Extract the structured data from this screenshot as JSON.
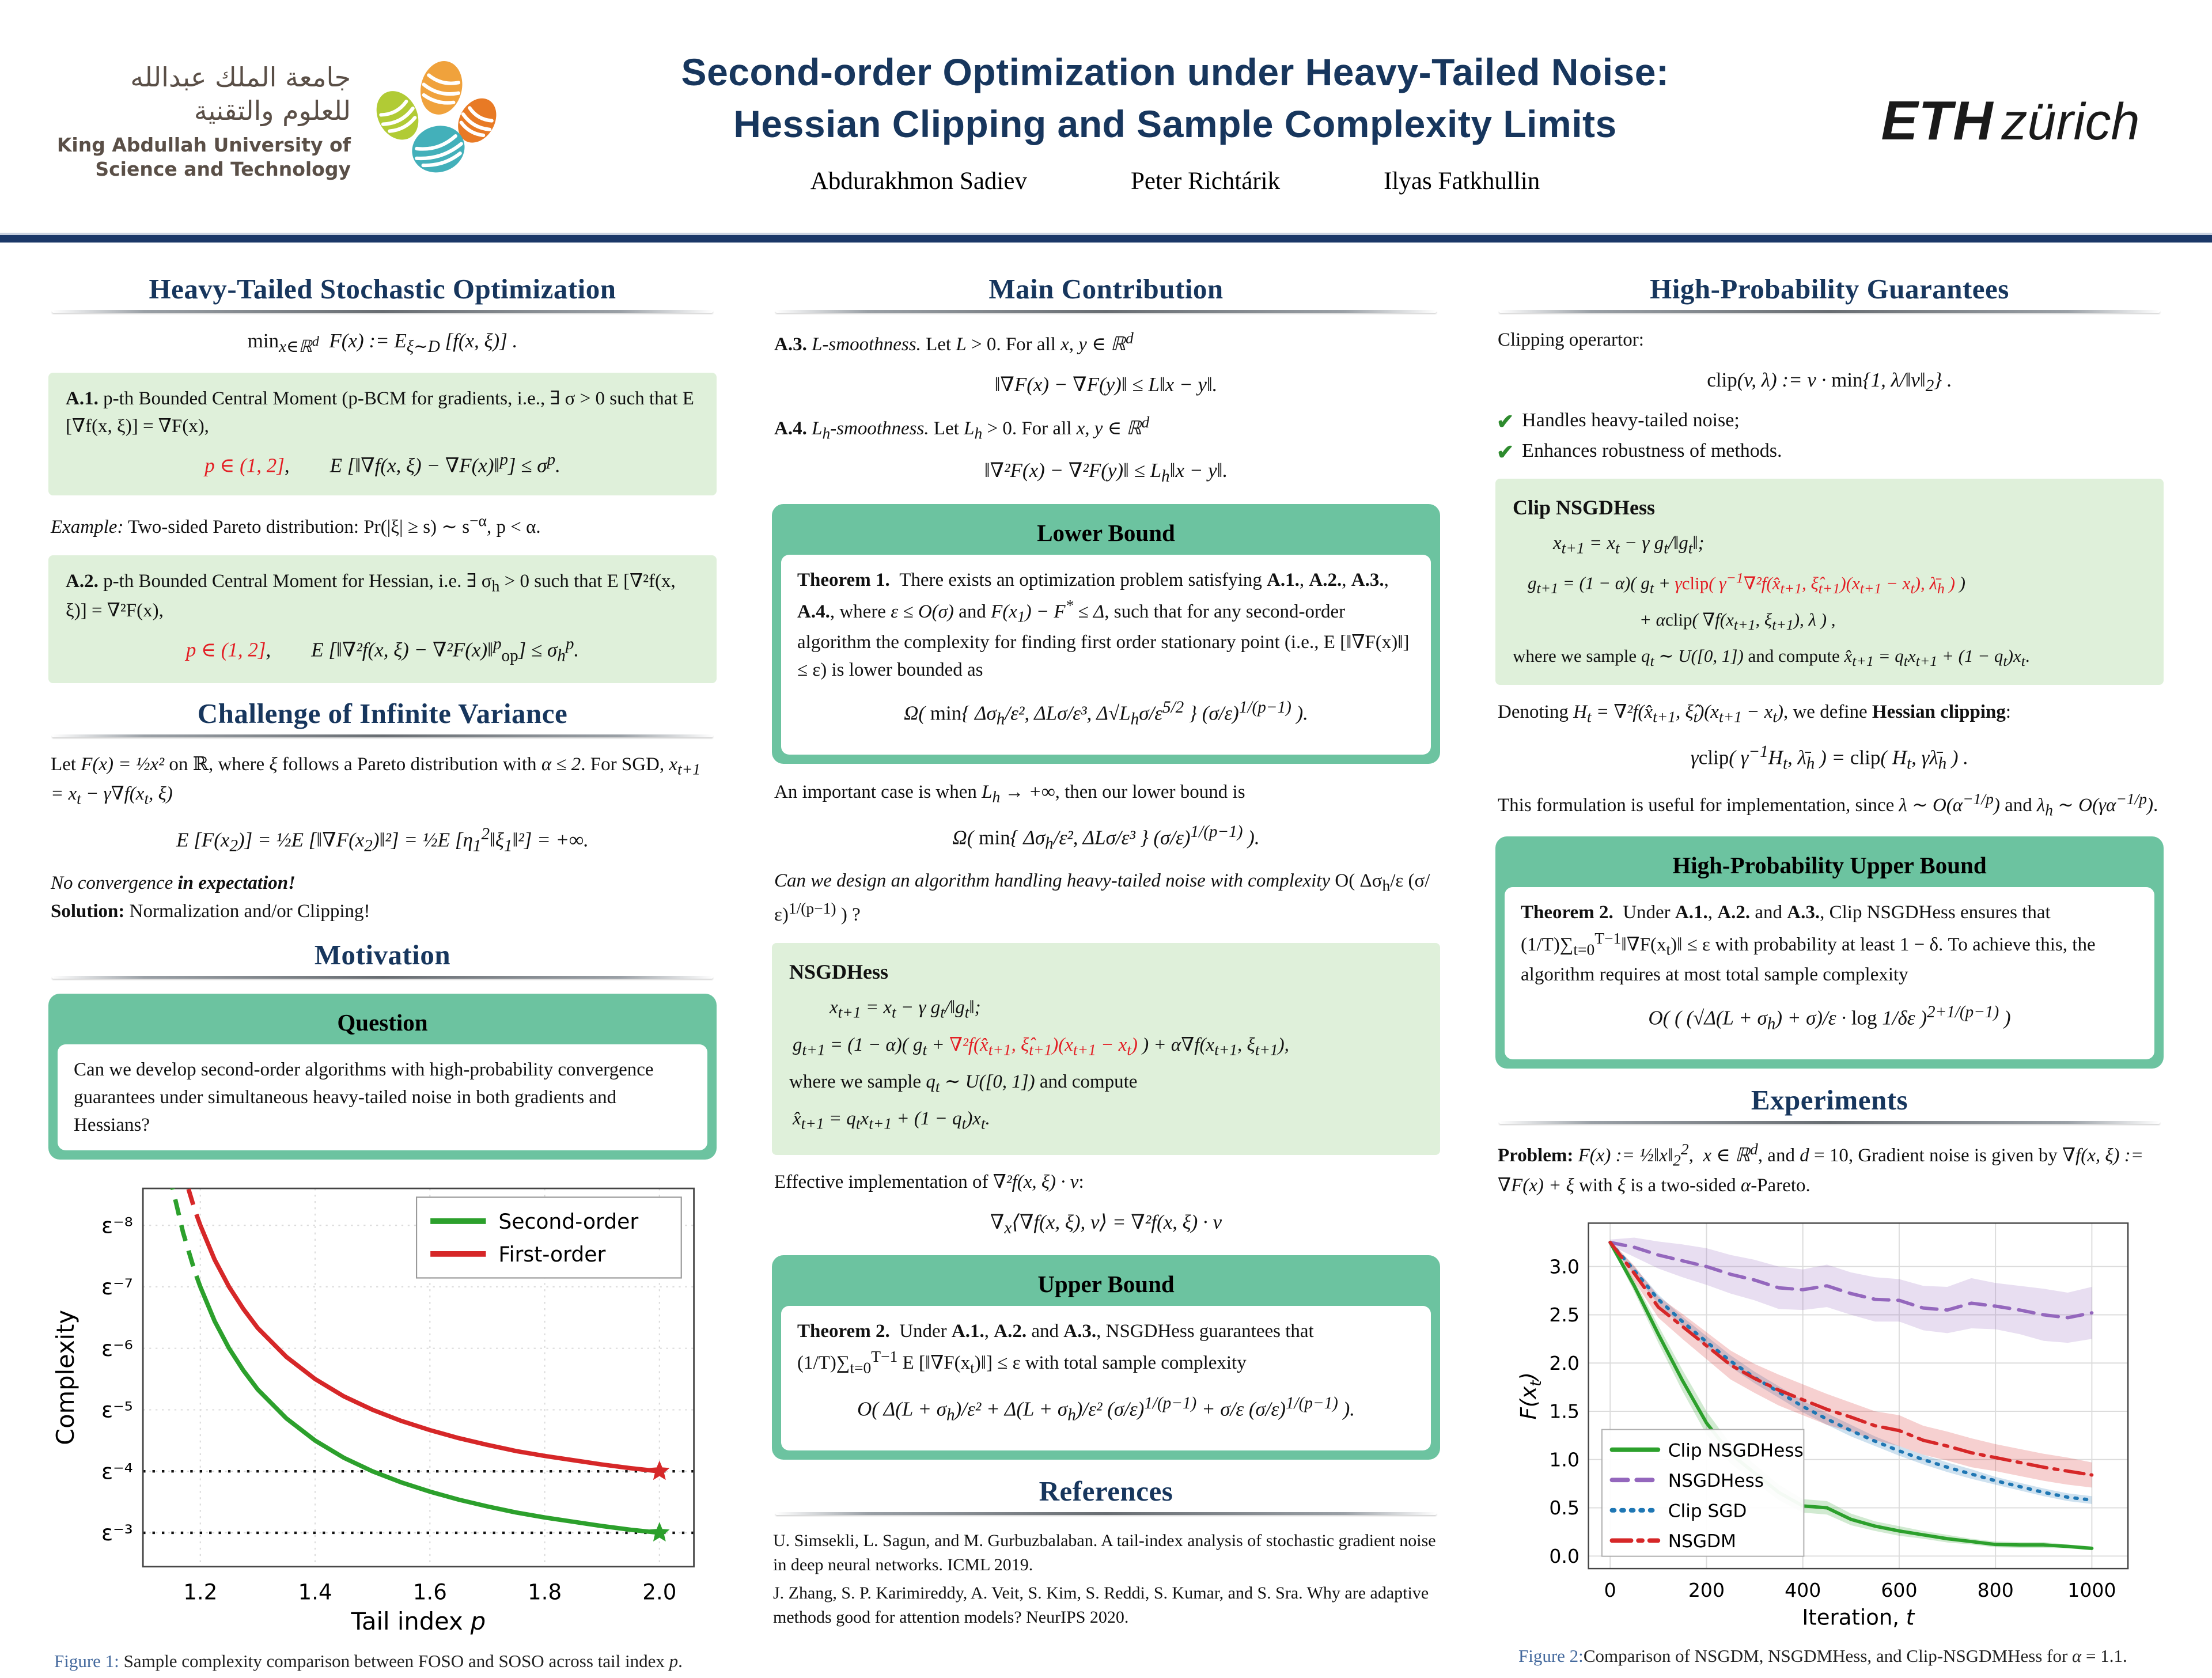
{
  "header": {
    "title1": "Second-order Optimization under Heavy-Tailed Noise:",
    "title2": "Hessian Clipping and Sample Complexity Limits",
    "authors": [
      "Abdurakhmon Sadiev",
      "Peter Richtárik",
      "Ilyas Fatkhullin"
    ]
  },
  "logos": {
    "kaust": {
      "arabic1": "جامعة الملك عبدالله",
      "arabic2": "للعلوم والتقنية",
      "english1": "King Abdullah University of",
      "english2": "Science and Technology"
    },
    "eth": {
      "bold": "ETH",
      "light": "zürich"
    }
  },
  "left": {
    "sec1_title": "Heavy-Tailed Stochastic Optimization",
    "eq_min": "<span class='rm'>min</span><sub>x∈ℝ<sup>d</sup></sub>&ensp;F(x) := E<sub>ξ∼D</sub> [f(x, ξ)] .",
    "a1_text": "<b class='rm'>A.1.</b> p-th Bounded Central Moment (p-BCM for gradients, i.e., ∃ σ &gt; 0 such that E [∇f(x, ξ)] = ∇F(x),",
    "a1_eq": "<span class='red'>p ∈ (1, 2]</span>,&emsp;&emsp;E [‖∇f(x, ξ) − ∇F(x)‖<sup>p</sup>] ≤ σ<sup>p</sup>.",
    "example": "<i>Example:</i> Two-sided Pareto distribution: <span class='rm'>Pr</span>(|ξ| ≥ s) ∼ s<sup>−α</sup>, p &lt; α.",
    "a2_text": "<b class='rm'>A.2.</b> p-th Bounded Central Moment for Hessian, i.e. ∃ σ<sub>h</sub> &gt; 0 such that E [∇²f(x, ξ)] = ∇²F(x),",
    "a2_eq": "<span class='red'>p ∈ (1, 2]</span>,&emsp;&emsp;E [‖∇²f(x, ξ) − ∇²F(x)‖<sup>p</sup><sub class='rm'>op</sub>] ≤ σ<sub>h</sub><sup>p</sup>.",
    "sec2_title": "Challenge of Infinite Variance",
    "chal_p1": "Let <i>F(x) = ½x²</i> on ℝ, where <i>ξ</i> follows a Pareto distribution with <i>α ≤ 2</i>. For SGD, <i>x<sub>t+1</sub> = x<sub>t</sub> − γ∇f(x<sub>t</sub>, ξ)</i>",
    "chal_eq": "E [F(x<sub>2</sub>)] = ½E [‖∇F(x<sub>2</sub>)‖²] = ½E [η<sub>1</sub><sup>2</sup>‖ξ<sub>1</sub>‖²] = +∞.",
    "chal_line1": "<i>No convergence</i> <b><i>in expectation!</i></b>",
    "chal_line2": "<b>Solution:</b> Normalization and/or Clipping!",
    "sec3_title": "Motivation",
    "q_title": "Question",
    "q_text": "Can we develop second-order algorithms with high-probability convergence guarantees under simultaneous heavy-tailed noise in both gradients and Hessians?",
    "fig1_label": "Figure 1:",
    "fig1_caption": "Sample complexity comparison between FOSO and SOSO across tail index <i>p</i>."
  },
  "middle": {
    "title": "Main Contribution",
    "a3_text": "<b class='rm'>A.3.</b> <i>L-smoothness.</i> Let <i>L</i> &gt; 0. For all <i>x, y ∈ ℝ<sup>d</sup></i>",
    "a3_eq": "‖∇F(x) − ∇F(y)‖ ≤ L‖x − y‖.",
    "a4_text": "<b class='rm'>A.4.</b> <i>L<sub>h</sub>-smoothness.</i> Let <i>L<sub>h</sub></i> &gt; 0. For all <i>x, y ∈ ℝ<sup>d</sup></i>",
    "a4_eq": "‖∇²F(x) − ∇²F(y)‖ ≤ L<sub>h</sub>‖x − y‖.",
    "lb_title": "Lower Bound",
    "thm1": "<b>Theorem 1.</b>&ensp;There exists an optimization problem satisfying <b>A.1.</b>, <b>A.2.</b>, <b>A.3.</b>, <b>A.4.</b>, where <i>ε ≤ O(σ)</i> and <i>F(x<sub>1</sub>) − F<sup>*</sup> ≤ Δ</i>, such that for any second-order algorithm the complexity for finding first order stationary point (i.e., E [‖∇F(x)‖] ≤ ε) is lower bounded as",
    "thm1_eq": "Ω( <span class='rm'>min</span>{ Δσ<sub>h</sub>/ε², ΔLσ/ε³, Δ√L<sub>h</sub>σ/ε<sup>5/2</sup> } (σ/ε)<sup>1/(p−1)</sup> ).",
    "imp": "An important case is when <i>L<sub>h</sub> → +∞</i>, then our lower bound is",
    "imp_eq": "Ω( <span class='rm'>min</span>{ Δσ<sub>h</sub>/ε², ΔLσ/ε³ } (σ/ε)<sup>1/(p−1)</sup> ).",
    "design_q": "<i>Can we design an algorithm handling heavy-tailed noise with complexity</i> O( Δσ<sub>h</sub>/ε (σ/ε)<sup>1/(p−1)</sup> ) ?",
    "alg_title": "NSGDHess",
    "alg_eq1": "x<sub>t+1</sub> = x<sub>t</sub> − γ g<sub>t</sub>/‖g<sub>t</sub>‖;",
    "alg_eq2": "g<sub>t+1</sub> = (1 − α)( g<sub>t</sub> + <span class='red'>∇²f(x̂<sub>t+1</sub>, ξ̂<sub>t+1</sub>)(x<sub>t+1</sub> − x<sub>t</sub>)</span> ) + α∇f(x<sub>t+1</sub>, ξ<sub>t+1</sub>),",
    "alg_p": "where we sample <i>q<sub>t</sub> ∼ U([0, 1])</i> and compute",
    "alg_eq3": "x̂<sub>t+1</sub> = q<sub>t</sub>x<sub>t+1</sub> + (1 − q<sub>t</sub>)x<sub>t</sub>.",
    "eff_p": "Effective implementation of <i>∇²f(x, ξ) · v</i>:",
    "eff_eq": "∇<sub>x</sub>⟨∇f(x, ξ), v⟩ = ∇²f(x, ξ) · v",
    "ub_title": "Upper Bound",
    "thm2": "<b>Theorem 2.</b>&ensp;Under <b>A.1.</b>, <b>A.2.</b> and <b>A.3.</b>, NSGDHess guarantees that (1/T)∑<sub>t=0</sub><sup>T−1</sup> E [‖∇F(x<sub>t</sub>)‖] ≤ ε with total sample complexity",
    "thm2_eq": "O( Δ(L + σ<sub>h</sub>)/ε² + Δ(L + σ<sub>h</sub>)/ε² (σ/ε)<sup>1/(p−1)</sup> + σ/ε (σ/ε)<sup>1/(p−1)</sup> ).",
    "refs_title": "References",
    "ref1": "U. Simsekli, L. Sagun, and M. Gurbuzbalaban. A tail-index analysis of stochastic gradient noise in deep neural networks. ICML 2019.",
    "ref2": "J. Zhang, S. P. Karimireddy, A. Veit, S. Kim, S. Reddi, S. Kumar, and S. Sra. Why are adaptive methods good for attention models? NeurIPS 2020."
  },
  "right": {
    "title": "High-Probability Guarantees",
    "clip_p": "Clipping operartor:",
    "clip_eq": "<span class='rm'>clip</span>(v, λ) := v · <span class='rm'>min</span>{1, λ/‖v‖<sub>2</sub>} .",
    "check1": "Handles heavy-tailed noise;",
    "check2": "Enhances robustness of methods.",
    "box_title": "Clip NSGDHess",
    "eq1": "x<sub>t+1</sub> = x<sub>t</sub> − γ g<sub>t</sub>/‖g<sub>t</sub>‖;",
    "eq2": "g<sub>t+1</sub> = (1 − α)( g<sub>t</sub> + <span class='red'>γ<span class='rm'>clip</span>( γ<sup>−1</sup>∇²f(x̂<sub>t+1</sub>, ξ̂<sub>t+1</sub>)(x<sub>t+1</sub> − x<sub>t</sub>), λ̄<sub>h</sub> )</span> )",
    "eq3": "+ α<span class='rm'>clip</span>( ∇f(x<sub>t+1</sub>, ξ<sub>t+1</sub>), λ ) ,",
    "where_p": "where we sample <i>q<sub>t</sub> ∼ U([0, 1])</i> and compute <i>x̂<sub>t+1</sub> = q<sub>t</sub>x<sub>t+1</sub> + (1 − q<sub>t</sub>)x<sub>t</sub></i>.",
    "denote_p": "Denoting <i>H<sub>t</sub> = ∇²f(x̂<sub>t+1</sub>, ξ̂<sub>t</sub>)(x<sub>t+1</sub> − x<sub>t</sub>)</i>, we define <b>Hessian clipping</b>:",
    "denote_eq": "γ<span class='rm'>clip</span>( γ<sup>−1</sup>H<sub>t</sub>, λ̄<sub>h</sub> ) = <span class='rm'>clip</span>( H<sub>t</sub>, γλ̄<sub>h</sub> ) .",
    "useful_p": "This formulation is useful for implementation, since <i>λ ∼ O(α<sup>−1/p</sup>)</i> and <i>λ<sub>h</sub> ∼ O(γα<sup>−1/p</sup>)</i>.",
    "hp_title": "High-Probability Upper Bound",
    "hp_thm": "<b>Theorem 2.</b>&ensp;Under <b>A.1.</b>, <b>A.2.</b> and <b>A.3.</b>, Clip NSGDHess ensures that (1/T)∑<sub>t=0</sub><sup>T−1</sup>‖∇F(x<sub>t</sub>)‖ ≤ ε with probability at least 1 − δ. To achieve this, the algorithm requires at most total sample complexity",
    "hp_eq": "O( ( (√Δ(L + σ<sub>h</sub>) + σ)/ε · <span class='rm'>log</span> 1/δε )<sup>2+1/(p−1)</sup> )",
    "exp_title": "Experiments",
    "problem": "<b>Problem:</b> <i>F(x) := ½‖x‖<sub>2</sub><sup>2</sup>,&ensp;x ∈ ℝ<sup>d</sup></i>, and <i>d</i> = 10, Gradient noise is given by <i>∇f(x, ξ) := ∇F(x) + ξ</i> with <i>ξ</i> is a two-sided <i>α</i>-Pareto.",
    "fig2_label": "Figure 2:",
    "fig2_caption": "Comparison of NSGDM, NSGDMHess, and Clip-NSGDMHess for <i>α</i> = 1.1."
  },
  "chart_data": [
    {
      "id": "fig1",
      "type": "line",
      "title": "",
      "xlabel": "Tail index p",
      "ylabel": "Complexity",
      "xlim": [
        1.1,
        2.06
      ],
      "ylim_exponent": [
        2.45,
        8.6
      ],
      "x_ticks": [
        1.2,
        1.4,
        1.6,
        1.8,
        2.0
      ],
      "y_ticks": [
        "ε⁻⁸",
        "ε⁻⁷",
        "ε⁻⁶",
        "ε⁻⁵",
        "ε⁻⁴",
        "ε⁻³"
      ],
      "y_tick_exponents": [
        8,
        7,
        6,
        5,
        4,
        3
      ],
      "dotted_lines_exponent": [
        4,
        3
      ],
      "dash_until_p": 1.2,
      "legend_position": "top-right",
      "grid": true,
      "p": [
        1.13,
        1.15,
        1.17,
        1.19,
        1.2,
        1.225,
        1.25,
        1.275,
        1.3,
        1.35,
        1.4,
        1.45,
        1.5,
        1.55,
        1.6,
        1.65,
        1.7,
        1.75,
        1.8,
        1.85,
        1.9,
        1.95,
        2.0
      ],
      "series": [
        {
          "name": "Second-order",
          "color": "#2ca02c",
          "formula": "exponent=(2p−1)/(p−1)",
          "end_marker": [
            2.0,
            3
          ],
          "exp": [
            9.69,
            8.67,
            7.88,
            7.26,
            7.0,
            6.44,
            6.0,
            5.64,
            5.33,
            4.86,
            4.5,
            4.22,
            4.0,
            3.82,
            3.67,
            3.54,
            3.43,
            3.33,
            3.25,
            3.18,
            3.11,
            3.05,
            3.0
          ]
        },
        {
          "name": "First-order",
          "color": "#d62728",
          "formula": "exponent=(3p−2)/(p−1)",
          "end_marker": [
            2.0,
            4
          ],
          "exp": [
            10.69,
            9.67,
            8.88,
            8.26,
            8.0,
            7.44,
            7.0,
            6.64,
            6.33,
            5.86,
            5.5,
            5.22,
            5.0,
            4.82,
            4.67,
            4.54,
            4.43,
            4.33,
            4.25,
            4.18,
            4.11,
            4.05,
            4.0
          ]
        }
      ]
    },
    {
      "id": "fig2",
      "type": "line",
      "title": "",
      "xlabel": "Iteration, t",
      "ylabel": "F(x_t)",
      "xlim": [
        -45,
        1075
      ],
      "ylim": [
        -0.13,
        3.45
      ],
      "x_ticks": [
        0,
        200,
        400,
        600,
        800,
        1000
      ],
      "y_ticks": [
        0.0,
        0.5,
        1.0,
        1.5,
        2.0,
        2.5,
        3.0
      ],
      "legend_position": "bottom-left",
      "grid": true,
      "x": [
        0,
        50,
        100,
        150,
        200,
        250,
        300,
        350,
        400,
        450,
        500,
        550,
        600,
        650,
        700,
        750,
        800,
        850,
        900,
        950,
        1000
      ],
      "series": [
        {
          "name": "Clip NSGDHess",
          "color": "#2ca02c",
          "style": "solid",
          "values": [
            3.25,
            2.8,
            2.3,
            1.82,
            1.38,
            1.06,
            0.86,
            0.66,
            0.52,
            0.5,
            0.38,
            0.31,
            0.26,
            0.22,
            0.18,
            0.15,
            0.12,
            0.115,
            0.115,
            0.1,
            0.08
          ],
          "band": [
            0.02,
            0.06,
            0.09,
            0.11,
            0.12,
            0.1,
            0.09,
            0.08,
            0.07,
            0.07,
            0.06,
            0.05,
            0.05,
            0.04,
            0.04,
            0.03,
            0.03,
            0.03,
            0.03,
            0.02,
            0.02
          ]
        },
        {
          "name": "NSGDHess",
          "color": "#9467bd",
          "style": "dashed",
          "values": [
            3.25,
            3.2,
            3.12,
            3.06,
            3.0,
            2.92,
            2.86,
            2.78,
            2.76,
            2.8,
            2.72,
            2.66,
            2.65,
            2.57,
            2.55,
            2.62,
            2.59,
            2.55,
            2.5,
            2.47,
            2.52
          ],
          "band": [
            0.03,
            0.1,
            0.14,
            0.17,
            0.19,
            0.2,
            0.21,
            0.22,
            0.21,
            0.22,
            0.22,
            0.23,
            0.22,
            0.23,
            0.24,
            0.26,
            0.24,
            0.25,
            0.27,
            0.26,
            0.27
          ]
        },
        {
          "name": "Clip SGD",
          "color": "#1f77b4",
          "style": "dotted",
          "values": [
            3.25,
            2.96,
            2.66,
            2.43,
            2.22,
            2.02,
            1.85,
            1.7,
            1.55,
            1.42,
            1.3,
            1.19,
            1.09,
            1.0,
            0.92,
            0.85,
            0.78,
            0.72,
            0.66,
            0.61,
            0.58
          ],
          "band": [
            0.02,
            0.04,
            0.05,
            0.05,
            0.06,
            0.06,
            0.06,
            0.06,
            0.06,
            0.06,
            0.06,
            0.05,
            0.05,
            0.05,
            0.05,
            0.05,
            0.04,
            0.04,
            0.04,
            0.04,
            0.04
          ]
        },
        {
          "name": "NSGDM",
          "color": "#d62728",
          "style": "dashdot",
          "values": [
            3.25,
            2.93,
            2.58,
            2.38,
            2.18,
            1.98,
            1.84,
            1.72,
            1.62,
            1.52,
            1.44,
            1.35,
            1.3,
            1.2,
            1.14,
            1.07,
            1.02,
            0.97,
            0.92,
            0.88,
            0.84
          ],
          "band": [
            0.02,
            0.08,
            0.11,
            0.13,
            0.14,
            0.15,
            0.15,
            0.16,
            0.16,
            0.16,
            0.15,
            0.15,
            0.16,
            0.15,
            0.15,
            0.15,
            0.14,
            0.14,
            0.14,
            0.14,
            0.13
          ]
        }
      ]
    }
  ]
}
